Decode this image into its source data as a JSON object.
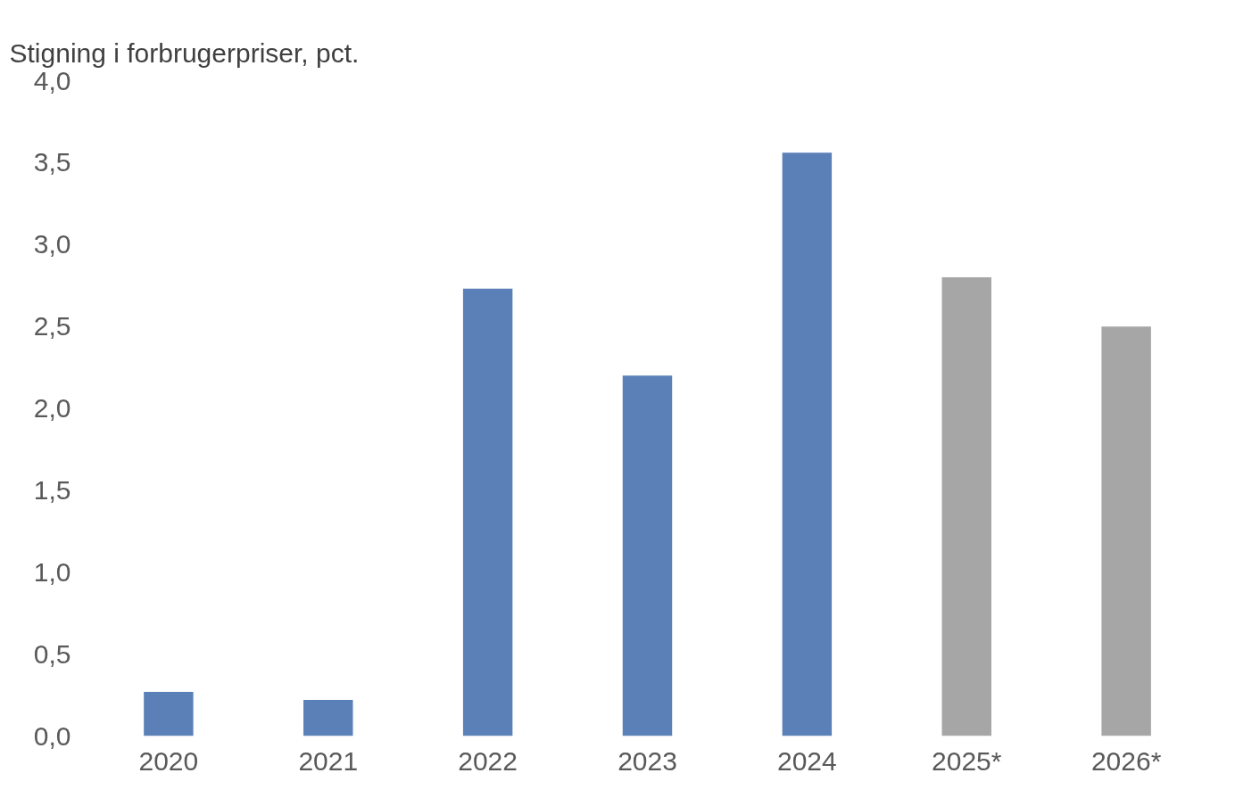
{
  "chart_data": {
    "type": "bar",
    "title": "Stigning i forbrugerpriser, pct.",
    "categories": [
      "2020",
      "2021",
      "2022",
      "2023",
      "2024",
      "2025*",
      "2026*"
    ],
    "values": [
      0.27,
      0.22,
      2.73,
      2.2,
      3.56,
      2.8,
      2.5
    ],
    "colors": [
      "#5b80b8",
      "#5b80b8",
      "#5b80b8",
      "#5b80b8",
      "#5b80b8",
      "#a6a6a6",
      "#a6a6a6"
    ],
    "ylim": [
      0,
      4
    ],
    "yticks": [
      {
        "value": 0,
        "label": "0,0"
      },
      {
        "value": 0.5,
        "label": "0,5"
      },
      {
        "value": 1,
        "label": "1,0"
      },
      {
        "value": 1.5,
        "label": "1,5"
      },
      {
        "value": 2,
        "label": "2,0"
      },
      {
        "value": 2.5,
        "label": "2,5"
      },
      {
        "value": 3,
        "label": "3,0"
      },
      {
        "value": 3.5,
        "label": "3,5"
      },
      {
        "value": 4,
        "label": "4,0"
      }
    ],
    "grid": false
  }
}
